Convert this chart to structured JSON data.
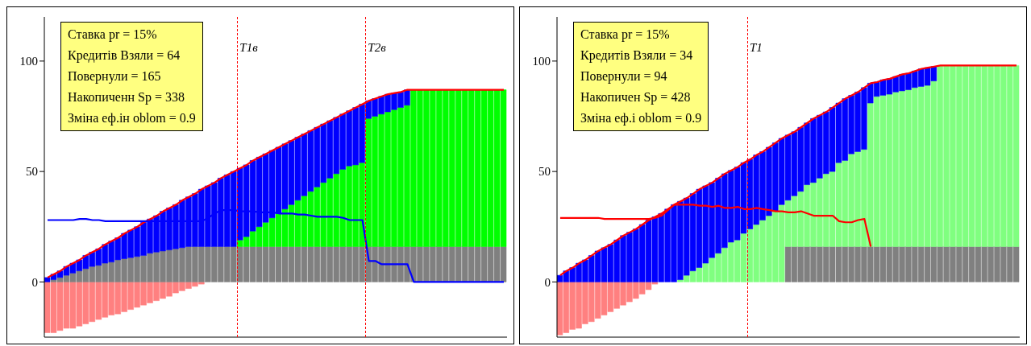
{
  "chart_data": [
    {
      "type": "bar",
      "stacked": true,
      "categories": [
        null,
        null,
        null,
        null,
        null,
        null,
        null,
        null,
        null,
        null,
        null,
        null,
        null,
        null,
        null,
        null,
        null,
        null,
        null,
        null,
        null,
        null,
        null,
        null,
        null,
        null,
        null,
        null,
        null,
        null,
        null,
        null,
        null,
        null,
        null,
        null,
        null,
        null,
        null,
        null,
        null,
        null,
        null,
        null,
        null,
        null,
        null,
        null,
        null,
        null,
        null,
        null,
        null,
        null,
        null,
        null,
        null,
        null,
        null,
        null,
        null,
        null,
        null,
        null,
        null,
        null,
        null,
        null,
        null,
        null,
        null,
        null
      ],
      "ylim": [
        -25,
        120
      ],
      "yticks": [
        0,
        50,
        100
      ],
      "tick_labels": "y",
      "series": [
        {
          "color": "#ff8080",
          "values": [
            -23,
            -23,
            -22,
            -21,
            -21,
            -20,
            -19,
            -18,
            -17,
            -16,
            -15,
            -14.5,
            -13.5,
            -12.5,
            -11.5,
            -10.5,
            -9.5,
            -8.5,
            -7.5,
            -6.5,
            -5,
            -4,
            -3,
            -2,
            -1,
            null,
            null,
            null,
            null,
            null,
            null,
            null,
            null,
            null,
            null,
            null,
            null,
            null,
            null,
            null,
            null,
            null,
            null,
            null,
            null,
            null,
            null,
            null,
            null,
            null,
            null,
            null,
            null,
            null,
            null,
            null,
            null,
            null,
            null,
            null,
            null,
            null,
            null,
            null,
            null,
            null,
            null,
            null,
            null,
            null,
            null,
            null
          ]
        },
        {
          "color": "#808080",
          "values": [
            null,
            1,
            2,
            3,
            4,
            5,
            6,
            7,
            7.5,
            8.5,
            9,
            10,
            10.5,
            11,
            11.5,
            12,
            13,
            13.5,
            14,
            14.5,
            15,
            15.5,
            16,
            16,
            16,
            16,
            16,
            16,
            16,
            16,
            16,
            16,
            16,
            16,
            16,
            16,
            16,
            16,
            16,
            16,
            16,
            16,
            16,
            16,
            16,
            16,
            16,
            16,
            16,
            16,
            16,
            16,
            16,
            16,
            16,
            16,
            16,
            16,
            16,
            16,
            16,
            16,
            16,
            16,
            16,
            16,
            16,
            16,
            16,
            16,
            16,
            16
          ]
        },
        {
          "color": "#00ff00",
          "values": [
            null,
            null,
            null,
            null,
            null,
            null,
            null,
            null,
            null,
            null,
            null,
            null,
            null,
            null,
            null,
            null,
            null,
            null,
            null,
            null,
            null,
            null,
            null,
            null,
            null,
            null,
            null,
            null,
            null,
            null,
            3,
            4.5,
            7,
            9,
            11,
            13,
            15,
            17,
            19,
            21,
            23,
            25,
            27,
            29,
            31,
            33,
            35,
            36.5,
            37,
            38,
            58,
            59,
            60,
            61,
            62,
            63,
            64,
            71,
            71,
            71,
            71,
            71,
            71,
            71,
            71,
            71,
            71,
            71,
            71,
            71,
            71,
            71
          ]
        },
        {
          "color": "#0000ff",
          "values": [
            2,
            2.5,
            3,
            4,
            4.5,
            5,
            6,
            6.5,
            7.5,
            8.5,
            9.5,
            10,
            11.5,
            12.5,
            13.5,
            15,
            15.5,
            16.5,
            18,
            19,
            20,
            21.5,
            22.5,
            24,
            26,
            27.5,
            29,
            31,
            32.5,
            34,
            32.5,
            32.5,
            32,
            31.5,
            31,
            30.5,
            30,
            29.5,
            29,
            28.5,
            28,
            27.5,
            27,
            26.5,
            26,
            25.5,
            25,
            25,
            26,
            26.5,
            8,
            8,
            8,
            8,
            7.5,
            7,
            7,
            null,
            null,
            null,
            null,
            null,
            null,
            null,
            null,
            null,
            null,
            null,
            null,
            null,
            null,
            null
          ]
        },
        {
          "type": "line",
          "color": "#ff0000",
          "values": [
            2,
            3.5,
            5,
            7,
            8.5,
            10,
            12,
            13.5,
            15,
            17,
            18.5,
            20,
            22,
            23.5,
            25,
            27,
            28.5,
            30,
            32,
            33.5,
            35,
            37,
            38.5,
            40,
            42,
            43.5,
            45,
            47,
            48.5,
            50,
            51.5,
            53,
            55,
            56.5,
            58,
            59.5,
            61,
            62.5,
            64,
            65.5,
            67,
            68.5,
            70,
            71.5,
            73,
            74.5,
            76,
            77.5,
            79,
            80.5,
            82,
            83,
            84,
            85,
            85.5,
            86,
            87,
            87,
            87,
            87,
            87,
            87,
            87,
            87,
            87,
            87,
            87,
            87,
            87,
            87,
            87,
            87
          ]
        },
        {
          "type": "line",
          "color": "#0000ff",
          "values": [
            28,
            28,
            28,
            28,
            28,
            28.5,
            28.5,
            28,
            28,
            27.5,
            27.5,
            27.5,
            27.5,
            27.5,
            27.5,
            27.5,
            27.5,
            27.5,
            27.5,
            27.5,
            27.5,
            27.5,
            27.5,
            27.5,
            27.5,
            29,
            31,
            32.5,
            32.5,
            32.5,
            32,
            32,
            32,
            31.5,
            31.5,
            31.5,
            31,
            31,
            31,
            30.5,
            30.5,
            30,
            29.5,
            29.5,
            29.5,
            29.5,
            29,
            28,
            28,
            28,
            9.5,
            9.5,
            8,
            8,
            8,
            8,
            8,
            0,
            0,
            0,
            0,
            0,
            0,
            0,
            0,
            0,
            0,
            0,
            0,
            0,
            0,
            0
          ]
        }
      ],
      "annotations": [
        "Ставка pr = 15%",
        "Кредитів Взяли = 64",
        "Повернули = 165",
        "Накопиченн Sp = 338",
        "Зміна еф.ін oblom = 0.9",
        {
          "text": "T1в"
        },
        {
          "text": "T2в"
        }
      ]
    },
    {
      "type": "bar",
      "stacked": true,
      "categories": [
        null,
        null,
        null,
        null,
        null,
        null,
        null,
        null,
        null,
        null,
        null,
        null,
        null,
        null,
        null,
        null,
        null,
        null,
        null,
        null,
        null,
        null,
        null,
        null,
        null,
        null,
        null,
        null,
        null,
        null,
        null,
        null,
        null,
        null,
        null,
        null,
        null,
        null,
        null,
        null,
        null,
        null,
        null,
        null,
        null,
        null,
        null,
        null,
        null,
        null,
        null,
        null,
        null,
        null,
        null,
        null,
        null,
        null,
        null,
        null,
        null,
        null,
        null,
        null,
        null,
        null,
        null,
        null,
        null,
        null,
        null,
        null,
        null
      ],
      "ylim": [
        -25,
        120
      ],
      "yticks": [
        0,
        50,
        100
      ],
      "tick_labels": "y",
      "series": [
        {
          "color": "#ff8080",
          "values": [
            -24,
            -23,
            -21.5,
            -21,
            -19,
            -18,
            -16.5,
            -15,
            -13.5,
            -12,
            -10.5,
            -9,
            -7.5,
            -5.5,
            -3.5,
            -1,
            null,
            null,
            null,
            null,
            null,
            null,
            null,
            null,
            null,
            null,
            null,
            null,
            null,
            null,
            null,
            null,
            null,
            null,
            null,
            null,
            null,
            null,
            null,
            null,
            null,
            null,
            null,
            null,
            null,
            null,
            null,
            null,
            null,
            null,
            null,
            null,
            null,
            null,
            null,
            null,
            null,
            null,
            null,
            null,
            null,
            null,
            null,
            null,
            null,
            null,
            null,
            null,
            null,
            null,
            null,
            null,
            null
          ]
        },
        {
          "color": "#808080",
          "values": [
            null,
            null,
            null,
            null,
            null,
            null,
            null,
            null,
            null,
            null,
            null,
            null,
            null,
            null,
            null,
            null,
            null,
            null,
            null,
            null,
            null,
            null,
            null,
            null,
            null,
            null,
            null,
            null,
            null,
            null,
            null,
            null,
            null,
            null,
            null,
            null,
            16,
            16,
            16,
            16,
            16,
            16,
            16,
            16,
            16,
            16,
            16,
            16,
            16,
            16,
            16,
            16,
            16,
            16,
            16,
            16,
            16,
            16,
            16,
            16,
            16,
            16,
            16,
            16,
            16,
            16,
            16,
            16,
            16,
            16,
            16,
            16,
            16
          ]
        },
        {
          "color": "#80ff80",
          "values": [
            null,
            null,
            null,
            null,
            null,
            null,
            null,
            null,
            null,
            null,
            null,
            null,
            null,
            null,
            null,
            null,
            null,
            null,
            null,
            1,
            3,
            5,
            6.5,
            8.5,
            11,
            13,
            15.5,
            18,
            19,
            22,
            24,
            26,
            28,
            30,
            32,
            35,
            21,
            23,
            25,
            28,
            29,
            31,
            33,
            34,
            38,
            39,
            42,
            43,
            44,
            65,
            68,
            68.5,
            69,
            70,
            70.5,
            71,
            72,
            72.5,
            73,
            75,
            82,
            82,
            82,
            82,
            82,
            82,
            82,
            82,
            82,
            82,
            82,
            82,
            82
          ]
        },
        {
          "color": "#0000ff",
          "values": [
            3,
            5,
            6.5,
            8.5,
            10,
            12,
            14,
            15.5,
            17,
            19,
            21,
            22.5,
            24,
            26,
            28,
            29.5,
            31,
            33,
            35,
            35.5,
            35,
            35,
            35.5,
            35,
            34,
            34,
            33.5,
            32.5,
            33,
            32,
            31.5,
            31.5,
            31,
            31,
            31,
            30,
            29.5,
            29,
            29,
            28,
            29,
            28.5,
            28,
            29,
            27,
            28,
            26.5,
            27,
            28,
            9,
            6.5,
            7,
            7,
            7,
            7.5,
            7.5,
            7.5,
            8,
            8,
            6.5,
            null,
            null,
            null,
            null,
            null,
            null,
            null,
            null,
            null,
            null,
            null,
            null,
            null
          ]
        },
        {
          "type": "line",
          "color": "#ff0000",
          "values": [
            3,
            5,
            6.5,
            8.5,
            10,
            12,
            14,
            15.5,
            17,
            19,
            21,
            22.5,
            24,
            26,
            28,
            29.5,
            31,
            33,
            35,
            36.5,
            38,
            40,
            42,
            43.5,
            45,
            47,
            49,
            50.5,
            52,
            54,
            55.5,
            57.5,
            59,
            61,
            63,
            65,
            66.5,
            68,
            70,
            72,
            74,
            75.5,
            77,
            79,
            81,
            83,
            84.5,
            86,
            88,
            90,
            90.5,
            91.5,
            92,
            93,
            94,
            94.5,
            95.5,
            96.5,
            97,
            97.5,
            98,
            98,
            98,
            98,
            98,
            98,
            98,
            98,
            98,
            98,
            98,
            98,
            98
          ]
        },
        {
          "type": "line",
          "color": "#ff0000",
          "values": [
            29,
            29,
            29,
            29,
            29,
            29,
            29,
            28.5,
            28.5,
            28.5,
            28.5,
            28.5,
            28.5,
            28.5,
            28.5,
            29,
            30,
            32.5,
            35,
            35,
            35,
            35,
            34.5,
            34.5,
            34,
            34.5,
            33.5,
            33.5,
            34,
            33,
            33,
            33.5,
            33,
            32.5,
            32,
            32,
            31.5,
            31.5,
            32,
            31,
            30,
            30,
            30,
            30,
            27.5,
            27,
            27,
            28,
            28.5,
            16,
            null,
            null,
            null,
            null,
            null,
            null,
            null,
            null,
            null,
            null,
            null,
            null,
            null,
            null,
            null,
            null,
            null,
            null,
            null,
            null,
            null,
            null,
            null
          ]
        }
      ],
      "annotations": [
        "Ставка pr = 15%",
        "Кредитів Взяли = 34",
        "Повернули = 94",
        "Накопичен Sp = 428",
        "Зміна еф.і oblom = 0.9",
        {
          "text": "T1"
        }
      ]
    }
  ]
}
